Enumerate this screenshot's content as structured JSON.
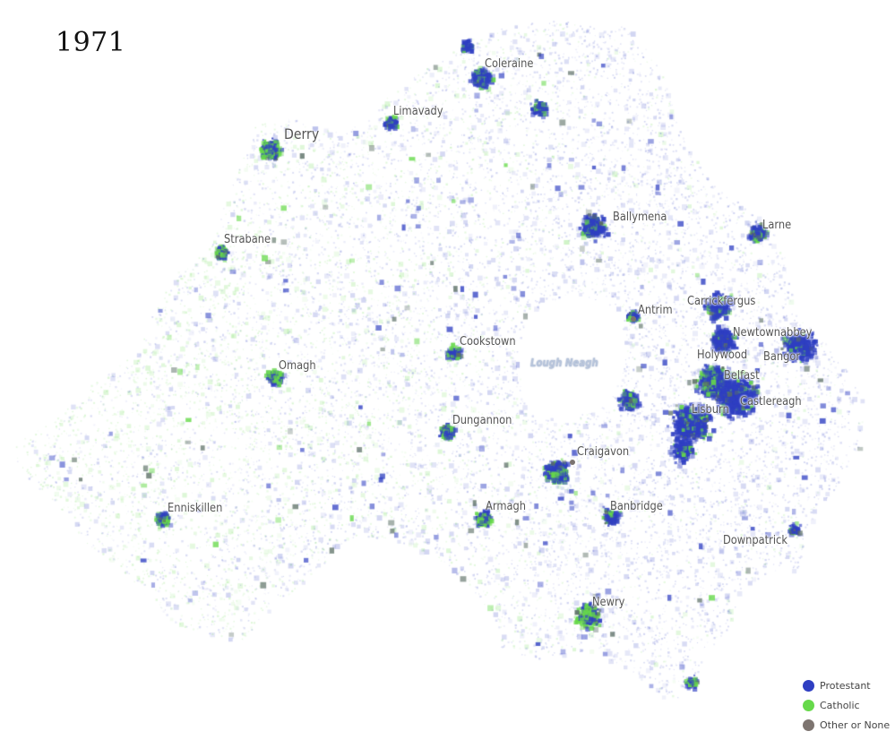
{
  "title": "1971",
  "lake": {
    "label": "Lough Neagh"
  },
  "towns": [
    {
      "id": "coleraine",
      "label": "Coleraine",
      "size": "normal",
      "dot": false
    },
    {
      "id": "limavady",
      "label": "Limavady",
      "size": "normal",
      "dot": false
    },
    {
      "id": "derry",
      "label": "Derry",
      "size": "large",
      "dot": false
    },
    {
      "id": "strabane",
      "label": "Strabane",
      "size": "normal",
      "dot": false
    },
    {
      "id": "ballymena",
      "label": "Ballymena",
      "size": "normal",
      "dot": false
    },
    {
      "id": "larne",
      "label": "Larne",
      "size": "normal",
      "dot": false
    },
    {
      "id": "antrim",
      "label": "Antrim",
      "size": "normal",
      "dot": true
    },
    {
      "id": "carrickfergus",
      "label": "Carrickfergus",
      "size": "normal",
      "dot": false
    },
    {
      "id": "newtownabbey",
      "label": "Newtownabbey",
      "size": "normal",
      "dot": false
    },
    {
      "id": "holywood",
      "label": "Holywood",
      "size": "normal",
      "dot": false
    },
    {
      "id": "bangor",
      "label": "Bangor",
      "size": "normal",
      "dot": false
    },
    {
      "id": "belfast",
      "label": "Belfast",
      "size": "normal",
      "dot": false
    },
    {
      "id": "castlereagh",
      "label": "Castlereagh",
      "size": "normal",
      "dot": false
    },
    {
      "id": "lisburn",
      "label": "Lisburn",
      "size": "normal",
      "dot": false
    },
    {
      "id": "cookstown",
      "label": "Cookstown",
      "size": "normal",
      "dot": false
    },
    {
      "id": "omagh",
      "label": "Omagh",
      "size": "normal",
      "dot": false
    },
    {
      "id": "dungannon",
      "label": "Dungannon",
      "size": "normal",
      "dot": false
    },
    {
      "id": "craigavon",
      "label": "Craigavon",
      "size": "normal",
      "dot": true
    },
    {
      "id": "armagh",
      "label": "Armagh",
      "size": "normal",
      "dot": false
    },
    {
      "id": "banbridge",
      "label": "Banbridge",
      "size": "normal",
      "dot": false
    },
    {
      "id": "enniskillen",
      "label": "Enniskillen",
      "size": "normal",
      "dot": false
    },
    {
      "id": "downpatrick",
      "label": "Downpatrick",
      "size": "normal",
      "dot": false
    },
    {
      "id": "newry",
      "label": "Newry",
      "size": "normal",
      "dot": false
    }
  ],
  "legend": [
    {
      "label": "Protestant",
      "color": "#2f3fc2"
    },
    {
      "label": "Catholic",
      "color": "#66d94a"
    },
    {
      "label": "Other or None",
      "color": "#7d7470"
    }
  ]
}
